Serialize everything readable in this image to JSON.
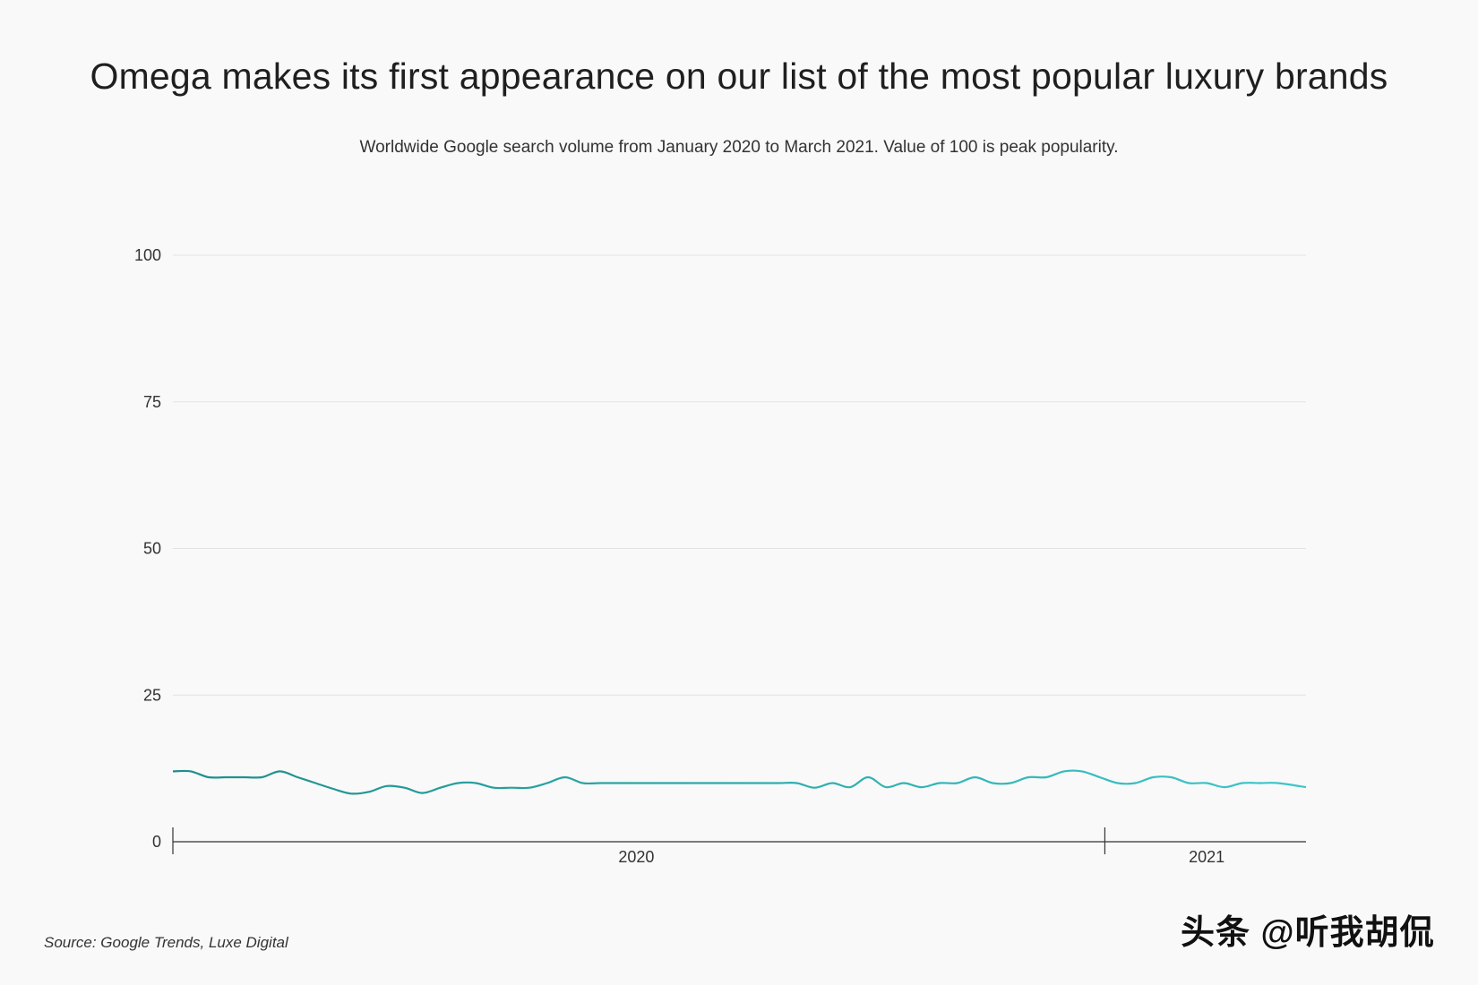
{
  "title": "Omega makes its first appearance on our list of the most popular luxury brands",
  "subtitle": "Worldwide Google search volume from January 2020 to March 2021. Value of 100 is peak popularity.",
  "source": "Source: Google Trends, Luxe Digital",
  "watermark": "头条 @听我胡侃",
  "colors": {
    "line_start": "#1e8f8a",
    "line_end": "#3cc6cb",
    "grid": "#e2e2e2",
    "axis": "#333333",
    "background": "#f9f9f9"
  },
  "chart_data": {
    "type": "line",
    "title": "Omega makes its first appearance on our list of the most popular luxury brands",
    "subtitle": "Worldwide Google search volume from January 2020 to March 2021. Value of 100 is peak popularity.",
    "xlabel": "",
    "ylabel": "",
    "ylim": [
      0,
      100
    ],
    "yticks": [
      0,
      25,
      50,
      75,
      100
    ],
    "xlim": [
      "2020-01-01",
      "2021-03-21"
    ],
    "xticks": [
      {
        "date": "2020-01-01",
        "label": ""
      },
      {
        "date": "2021-01-01",
        "label": ""
      }
    ],
    "xtick_labels": [
      {
        "date": "2020-07-01",
        "label": "2020"
      },
      {
        "date": "2021-02-10",
        "label": "2021"
      }
    ],
    "grid": true,
    "legend": "none",
    "series": [
      {
        "x": [
          "2020-01-01",
          "2020-01-08",
          "2020-01-15",
          "2020-01-22",
          "2020-01-29",
          "2020-02-05",
          "2020-02-12",
          "2020-02-19",
          "2020-02-26",
          "2020-03-04",
          "2020-03-11",
          "2020-03-18",
          "2020-03-25",
          "2020-04-01",
          "2020-04-08",
          "2020-04-15",
          "2020-04-22",
          "2020-04-29",
          "2020-05-06",
          "2020-05-13",
          "2020-05-20",
          "2020-05-27",
          "2020-06-03",
          "2020-06-10",
          "2020-06-17",
          "2020-06-24",
          "2020-07-01",
          "2020-07-08",
          "2020-07-15",
          "2020-07-22",
          "2020-07-29",
          "2020-08-05",
          "2020-08-12",
          "2020-08-19",
          "2020-08-26",
          "2020-09-02",
          "2020-09-09",
          "2020-09-16",
          "2020-09-23",
          "2020-09-30",
          "2020-10-07",
          "2020-10-14",
          "2020-10-21",
          "2020-10-28",
          "2020-11-04",
          "2020-11-11",
          "2020-11-18",
          "2020-11-25",
          "2020-12-02",
          "2020-12-09",
          "2020-12-16",
          "2020-12-23",
          "2020-12-30",
          "2021-01-06",
          "2021-01-13",
          "2021-01-20",
          "2021-01-27",
          "2021-02-03",
          "2021-02-10",
          "2021-02-17",
          "2021-02-24",
          "2021-03-03",
          "2021-03-10",
          "2021-03-21"
        ],
        "y": [
          12,
          12,
          11,
          11,
          11,
          11,
          12,
          11,
          10,
          9,
          8.2,
          8.5,
          9.5,
          9.2,
          8.3,
          9.2,
          10,
          10,
          9.2,
          9.2,
          9.2,
          10,
          11,
          10,
          10,
          10,
          10,
          10,
          10,
          10,
          10,
          10,
          10,
          10,
          10,
          10,
          9.2,
          10,
          9.3,
          11,
          9.3,
          10,
          9.3,
          10,
          10,
          11,
          10,
          10,
          11,
          11,
          12,
          12,
          11,
          10,
          10,
          11,
          11,
          10,
          10,
          9.3,
          10,
          10,
          10,
          9.3
        ]
      }
    ]
  }
}
